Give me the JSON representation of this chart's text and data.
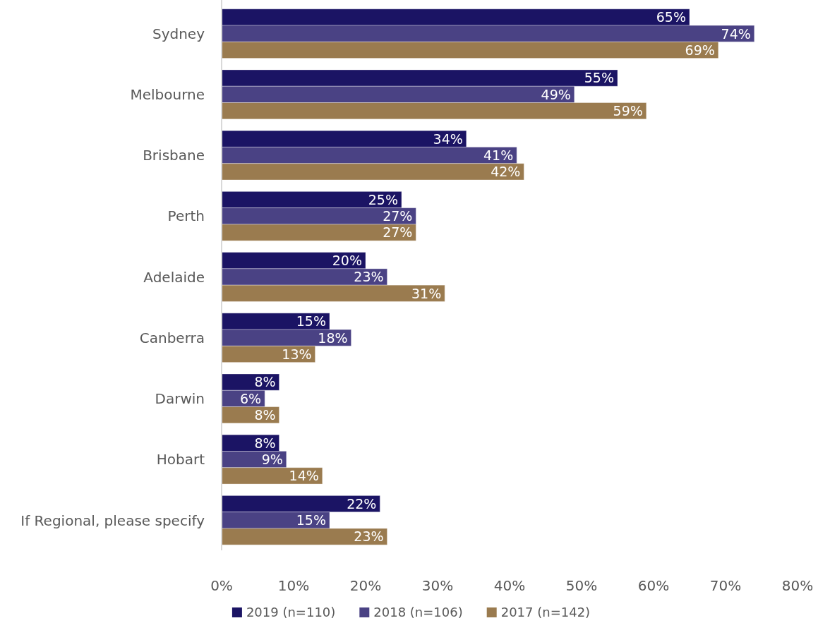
{
  "chart_data": {
    "type": "bar",
    "orientation": "horizontal",
    "categories": [
      "Sydney",
      "Melbourne",
      "Brisbane",
      "Perth",
      "Adelaide",
      "Canberra",
      "Darwin",
      "Hobart",
      "If Regional, please specify"
    ],
    "series": [
      {
        "name": "2019 (n=110)",
        "color": "#1b1464",
        "values": [
          65,
          55,
          34,
          25,
          20,
          15,
          8,
          8,
          22
        ],
        "value_labels": [
          "65%",
          "55%",
          "34%",
          "25%",
          "20%",
          "15%",
          "8%",
          "8%",
          "22%"
        ]
      },
      {
        "name": "2018 (n=106)",
        "color": "#4a4284",
        "values": [
          74,
          49,
          41,
          27,
          23,
          18,
          6,
          9,
          15
        ],
        "value_labels": [
          "74%",
          "49%",
          "41%",
          "27%",
          "23%",
          "18%",
          "6%",
          "9%",
          "15%"
        ]
      },
      {
        "name": "2017 (n=142)",
        "color": "#9a7b4f",
        "values": [
          69,
          59,
          42,
          27,
          31,
          13,
          8,
          14,
          23
        ],
        "value_labels": [
          "69%",
          "59%",
          "42%",
          "27%",
          "31%",
          "13%",
          "8%",
          "14%",
          "23%"
        ]
      }
    ],
    "xlim": [
      0,
      80
    ],
    "xticks": [
      {
        "value": 0,
        "label": "0%"
      },
      {
        "value": 10,
        "label": "10%"
      },
      {
        "value": 20,
        "label": "20%"
      },
      {
        "value": 30,
        "label": "30%"
      },
      {
        "value": 40,
        "label": "40%"
      },
      {
        "value": 50,
        "label": "50%"
      },
      {
        "value": 60,
        "label": "60%"
      },
      {
        "value": 70,
        "label": "70%"
      },
      {
        "value": 80,
        "label": "80%"
      }
    ],
    "grid": false,
    "legend": "bottom"
  }
}
